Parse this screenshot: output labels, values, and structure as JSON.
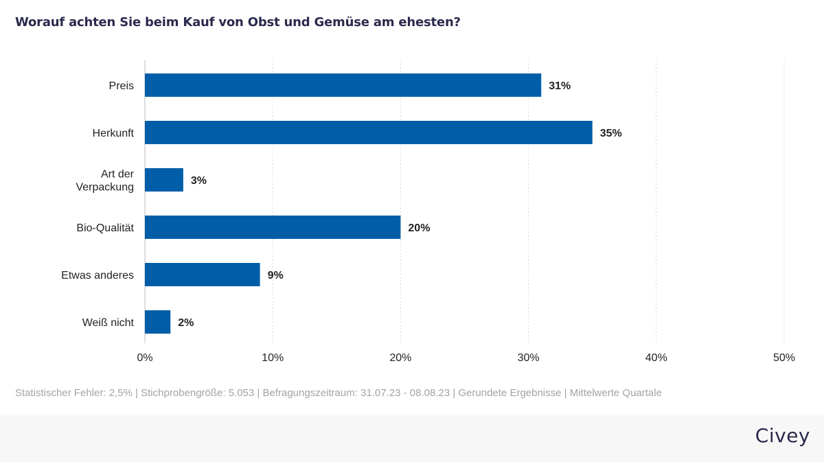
{
  "title": "Worauf achten Sie beim Kauf von Obst und Gemüse am ehesten?",
  "footnote": "Statistischer Fehler: 2,5% | Stichprobengröße: 5.053 | Befragungszeitraum: 31.07.23 - 08.08.23 | Gerundete Ergebnisse | Mittelwerte Quartale",
  "brand": "Civey",
  "colors": {
    "bar": "#005ea8",
    "grid": "#d9d9d9",
    "text": "#222222",
    "title": "#2b2a4c",
    "footnote": "#a3a3a3",
    "footer_band": "#f7f7f7"
  },
  "chart_data": {
    "type": "bar",
    "orientation": "horizontal",
    "categories": [
      [
        "Preis"
      ],
      [
        "Herkunft"
      ],
      [
        "Art der",
        "Verpackung"
      ],
      [
        "Bio-Qualität"
      ],
      [
        "Etwas anderes"
      ],
      [
        "Weiß nicht"
      ]
    ],
    "values": [
      31,
      35,
      3,
      20,
      9,
      2
    ],
    "value_labels": [
      "31%",
      "35%",
      "3%",
      "20%",
      "9%",
      "2%"
    ],
    "xlim": [
      0,
      50
    ],
    "xticks": [
      0,
      10,
      20,
      30,
      40,
      50
    ],
    "xtick_labels": [
      "0%",
      "10%",
      "20%",
      "30%",
      "40%",
      "50%"
    ],
    "grid": "vertical dotted",
    "legend": "none"
  }
}
